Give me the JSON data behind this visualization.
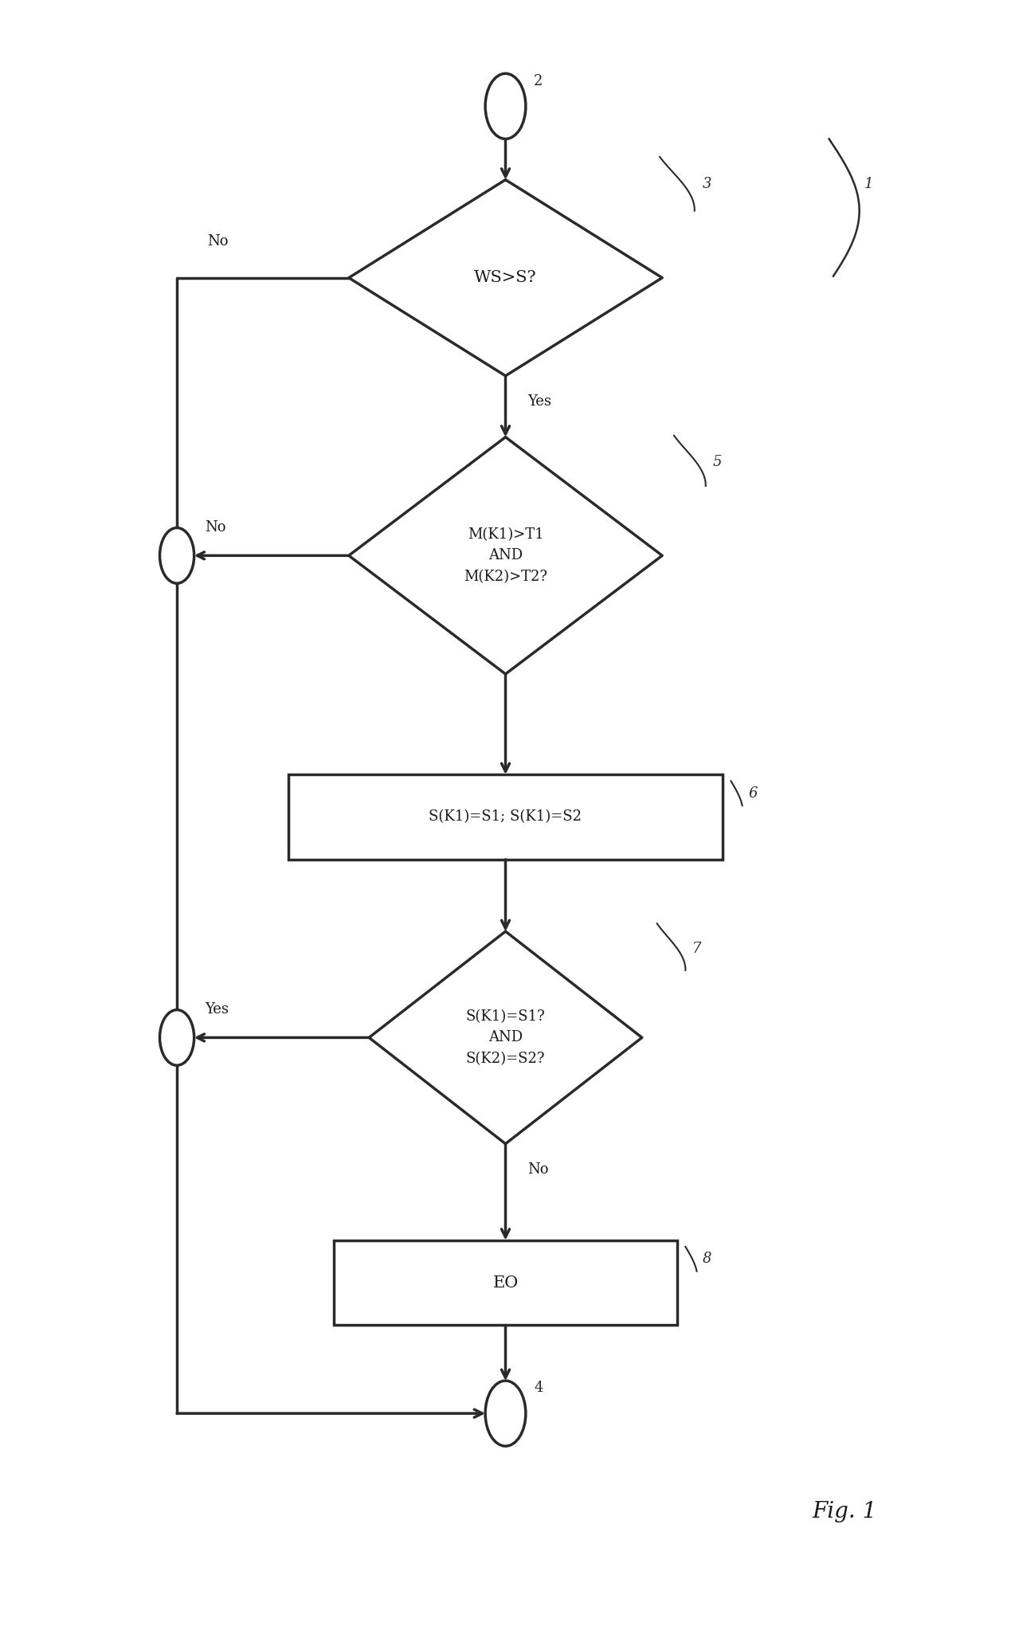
{
  "bg_color": "#ffffff",
  "line_color": "#2a2a2a",
  "fig_width": 12.69,
  "fig_height": 20.51,
  "title": "Fig. 1",
  "diamond1_text": "WS>S?",
  "diamond1_id": "3",
  "diamond2_text": "M(K1)>T1\nAND\nM(K2)>T2?",
  "diamond2_id": "5",
  "rect1_text": "S(K1)=S1; S(K1)=S2",
  "rect1_id": "6",
  "diamond3_text": "S(K1)=S1?\nAND\nS(K2)=S2?",
  "diamond3_id": "7",
  "rect2_text": "EO",
  "rect2_id": "8",
  "start_id": "2",
  "end_id": "4",
  "ref_id": "1",
  "label_no": "No",
  "label_yes": "Yes"
}
